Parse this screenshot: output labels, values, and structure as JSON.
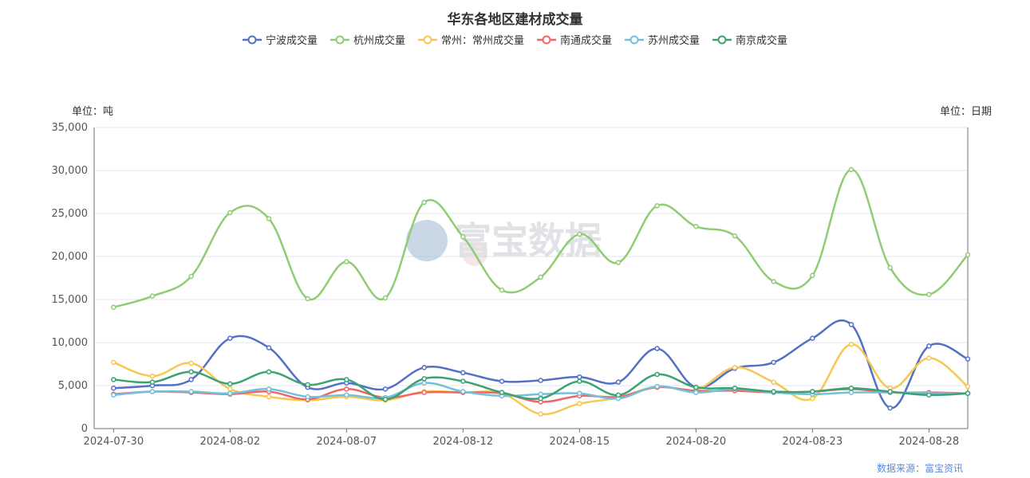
{
  "chart_data": {
    "type": "line",
    "title": "华东各地区建材成交量",
    "ylabel": "单位：吨",
    "xlabel": "单位：日期",
    "ylim": [
      0,
      35000
    ],
    "yticks": [
      "0",
      "5,000",
      "10,000",
      "15,000",
      "20,000",
      "25,000",
      "30,000",
      "35,000"
    ],
    "xtick_labels": [
      "2024-07-30",
      "2024-08-02",
      "2024-08-07",
      "2024-08-12",
      "2024-08-15",
      "2024-08-20",
      "2024-08-23",
      "2024-08-28"
    ],
    "x": [
      "2024-07-30",
      "2024-07-31",
      "2024-08-01",
      "2024-08-02",
      "2024-08-05",
      "2024-08-06",
      "2024-08-07",
      "2024-08-08",
      "2024-08-09",
      "2024-08-12",
      "2024-08-13",
      "2024-08-14",
      "2024-08-15",
      "2024-08-16",
      "2024-08-19",
      "2024-08-20",
      "2024-08-21",
      "2024-08-22",
      "2024-08-23",
      "2024-08-26",
      "2024-08-27",
      "2024-08-28",
      "2024-08-29"
    ],
    "series": [
      {
        "name": "宁波成交量",
        "color": "#5470c6",
        "values": [
          4700,
          5000,
          5700,
          10500,
          9400,
          4800,
          5300,
          4600,
          7100,
          6500,
          5500,
          5600,
          6000,
          5400,
          9300,
          4800,
          7000,
          7700,
          10500,
          12100,
          2400,
          9600,
          8100
        ]
      },
      {
        "name": "杭州成交量",
        "color": "#91cc75",
        "values": [
          14100,
          15400,
          17700,
          25100,
          24400,
          15100,
          19400,
          15200,
          26300,
          22300,
          16100,
          17600,
          22600,
          19300,
          25900,
          23500,
          22400,
          17100,
          17800,
          30100,
          18700,
          15600,
          20200
        ]
      },
      {
        "name": "常州：常州成交量",
        "color": "#f7c753",
        "values": [
          7700,
          6100,
          7600,
          4600,
          3700,
          3300,
          3700,
          3300,
          4300,
          4200,
          4100,
          1700,
          2900,
          3600,
          4900,
          4500,
          7100,
          5400,
          3500,
          9800,
          4700,
          8200,
          4900
        ]
      },
      {
        "name": "南通成交量",
        "color": "#ee6666",
        "values": [
          4000,
          4300,
          4200,
          4000,
          4300,
          3400,
          4600,
          3600,
          4200,
          4200,
          4100,
          3100,
          3800,
          3700,
          4800,
          4400,
          4400,
          4200,
          4300,
          4600,
          4200,
          4200,
          4100
        ]
      },
      {
        "name": "苏州成交量",
        "color": "#73c0de",
        "values": [
          3900,
          4300,
          4300,
          4100,
          4600,
          3700,
          3900,
          3600,
          5300,
          4300,
          3800,
          4000,
          4100,
          3500,
          4900,
          4200,
          4600,
          4200,
          4000,
          4200,
          4200,
          4100,
          4100
        ]
      },
      {
        "name": "南京成交量",
        "color": "#3ba272",
        "values": [
          5700,
          5400,
          6600,
          5200,
          6600,
          5100,
          5700,
          3400,
          5800,
          5500,
          4200,
          3500,
          5500,
          3900,
          6300,
          4800,
          4700,
          4300,
          4300,
          4700,
          4300,
          3900,
          4100
        ]
      }
    ],
    "grid": true,
    "legend_position": "top-center"
  },
  "watermark": "富宝数据",
  "source": "数据来源：富宝资讯"
}
